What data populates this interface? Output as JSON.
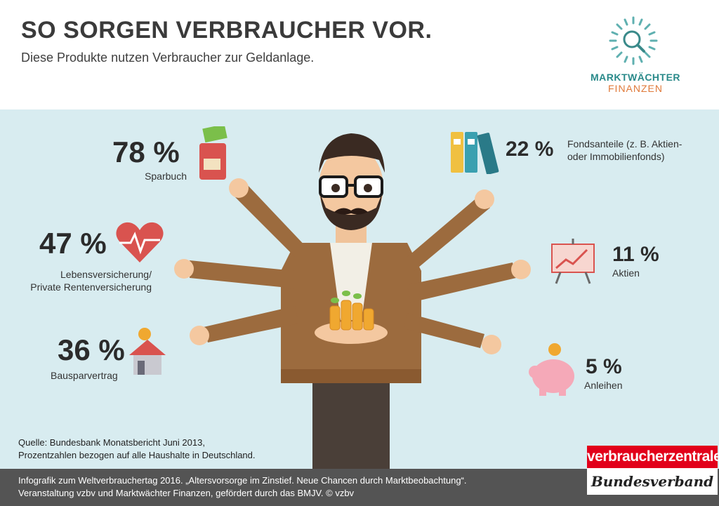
{
  "header": {
    "title": "SO SORGEN VERBRAUCHER VOR.",
    "subtitle": "Diese Produkte nutzen Verbraucher zur Geldanlage.",
    "logo": {
      "line1": "MARKTWÄCHTER",
      "line2": "FINANZEN",
      "icon": "magnifier-icon"
    }
  },
  "stats": {
    "sparbuch": {
      "pct": "78 %",
      "label": "Sparbuch",
      "icon": "wallet-icon"
    },
    "lebens": {
      "pct": "47 %",
      "label1": "Lebensversicherung/",
      "label2": "Private Rentenversicherung",
      "icon": "heart-icon"
    },
    "bauspar": {
      "pct": "36 %",
      "label": "Bausparvertrag",
      "icon": "house-icon"
    },
    "fonds": {
      "pct": "22 %",
      "label1": "Fondsanteile (z. B. Aktien-",
      "label2": "oder Immobilienfonds)",
      "icon": "binders-icon"
    },
    "aktien": {
      "pct": "11 %",
      "label": "Aktien",
      "icon": "chart-board-icon"
    },
    "anleihen": {
      "pct": "5 %",
      "label": "Anleihen",
      "icon": "piggy-bank-icon"
    }
  },
  "source": {
    "line1": "Quelle: Bundesbank Monatsbericht Juni 2013,",
    "line2": "Prozentzahlen bezogen auf alle Haushalte in Deutschland."
  },
  "footer": {
    "line1": "Infografik zum Weltverbrauchertag 2016. „Altersvorsorge im Zinstief. Neue Chancen durch Marktbeobachtung“.",
    "line2": "Veranstaltung vzbv und Marktwächter Finanzen, gefördert durch das BMJV. © vzbv"
  },
  "brand": {
    "top": "verbraucherzentrale",
    "bottom": "Bundesverband"
  },
  "colors": {
    "background": "#d8ecf0",
    "footer": "#545454",
    "accent_red": "#e2001a",
    "teal": "#2a8a8a",
    "orange": "#e07a3a"
  }
}
